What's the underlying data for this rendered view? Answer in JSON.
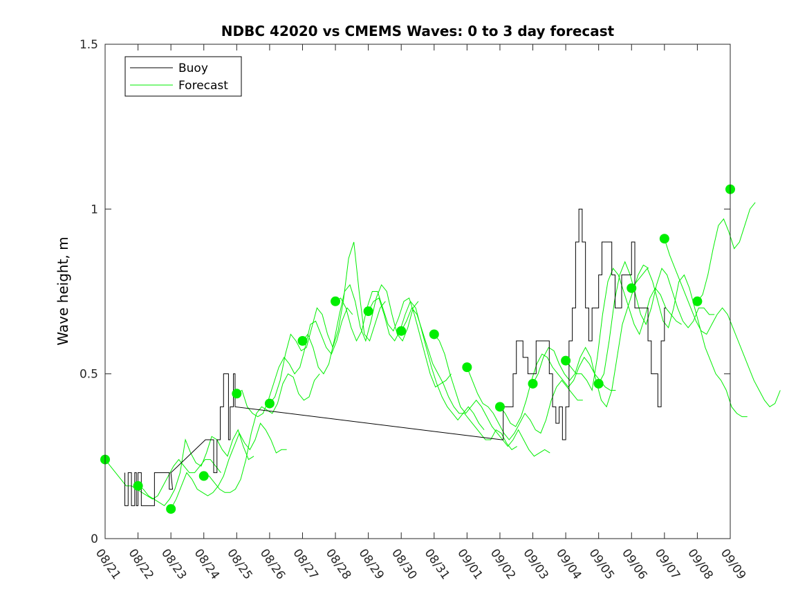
{
  "chart_data": {
    "type": "line",
    "title": "NDBC 42020 vs CMEMS Waves: 0 to 3 day forecast",
    "xlabel": "",
    "ylabel": "Wave height, m",
    "x_unit": "day (month/day)",
    "xlim": [
      "08/21",
      "09/09"
    ],
    "ylim": [
      0,
      1.5
    ],
    "x_ticks": [
      "08/21",
      "08/22",
      "08/23",
      "08/24",
      "08/25",
      "08/26",
      "08/27",
      "08/28",
      "08/29",
      "08/30",
      "08/31",
      "09/01",
      "09/02",
      "09/03",
      "09/04",
      "09/05",
      "09/06",
      "09/07",
      "09/08",
      "09/09"
    ],
    "y_ticks": [
      0,
      0.5,
      1,
      1.5
    ],
    "y_tick_labels": [
      "0",
      "0.5",
      "1",
      "1.5"
    ],
    "grid": false,
    "legend_position": "top-left",
    "legend": [
      "Buoy",
      "Forecast"
    ],
    "colors": {
      "buoy": "#000000",
      "forecast": "#00ee00",
      "markers": "#00ee00"
    },
    "buoy": {
      "name": "Buoy",
      "points": [
        [
          0.6,
          0.2
        ],
        [
          0.6,
          0.1
        ],
        [
          0.7,
          0.1
        ],
        [
          0.7,
          0.2
        ],
        [
          0.8,
          0.2
        ],
        [
          0.8,
          0.1
        ],
        [
          0.9,
          0.1
        ],
        [
          0.9,
          0.2
        ],
        [
          0.95,
          0.2
        ],
        [
          0.95,
          0.1
        ],
        [
          1.0,
          0.1
        ],
        [
          1.0,
          0.2
        ],
        [
          1.1,
          0.2
        ],
        [
          1.1,
          0.1
        ],
        [
          1.5,
          0.1
        ],
        [
          1.5,
          0.2
        ],
        [
          1.95,
          0.2
        ],
        [
          1.95,
          0.15
        ],
        [
          2.05,
          0.15
        ],
        [
          2.0,
          0.2
        ],
        [
          3.05,
          0.3
        ],
        [
          3.3,
          0.3
        ],
        [
          3.3,
          0.2
        ],
        [
          3.4,
          0.2
        ],
        [
          3.4,
          0.3
        ],
        [
          3.5,
          0.3
        ],
        [
          3.5,
          0.4
        ],
        [
          3.6,
          0.4
        ],
        [
          3.6,
          0.5
        ],
        [
          3.75,
          0.5
        ],
        [
          3.75,
          0.3
        ],
        [
          3.8,
          0.3
        ],
        [
          3.8,
          0.4
        ],
        [
          3.9,
          0.4
        ],
        [
          3.9,
          0.5
        ],
        [
          3.95,
          0.5
        ],
        [
          3.95,
          0.4
        ],
        [
          12.05,
          0.3
        ],
        [
          12.1,
          0.3
        ],
        [
          12.1,
          0.4
        ],
        [
          12.4,
          0.4
        ],
        [
          12.4,
          0.5
        ],
        [
          12.5,
          0.5
        ],
        [
          12.5,
          0.6
        ],
        [
          12.7,
          0.6
        ],
        [
          12.7,
          0.55
        ],
        [
          12.85,
          0.55
        ],
        [
          12.85,
          0.5
        ],
        [
          13.1,
          0.5
        ],
        [
          13.1,
          0.6
        ],
        [
          13.5,
          0.6
        ],
        [
          13.5,
          0.5
        ],
        [
          13.6,
          0.5
        ],
        [
          13.6,
          0.4
        ],
        [
          13.7,
          0.4
        ],
        [
          13.7,
          0.35
        ],
        [
          13.8,
          0.35
        ],
        [
          13.8,
          0.4
        ],
        [
          13.9,
          0.4
        ],
        [
          13.9,
          0.3
        ],
        [
          14.0,
          0.3
        ],
        [
          14.0,
          0.4
        ],
        [
          14.1,
          0.4
        ],
        [
          14.1,
          0.6
        ],
        [
          14.2,
          0.6
        ],
        [
          14.2,
          0.7
        ],
        [
          14.3,
          0.7
        ],
        [
          14.3,
          0.9
        ],
        [
          14.4,
          0.9
        ],
        [
          14.4,
          1.0
        ],
        [
          14.5,
          1.0
        ],
        [
          14.5,
          0.9
        ],
        [
          14.6,
          0.9
        ],
        [
          14.6,
          0.7
        ],
        [
          14.7,
          0.7
        ],
        [
          14.7,
          0.6
        ],
        [
          14.8,
          0.6
        ],
        [
          14.8,
          0.7
        ],
        [
          15.0,
          0.7
        ],
        [
          15.0,
          0.8
        ],
        [
          15.1,
          0.8
        ],
        [
          15.1,
          0.9
        ],
        [
          15.4,
          0.9
        ],
        [
          15.4,
          0.8
        ],
        [
          15.5,
          0.8
        ],
        [
          15.5,
          0.7
        ],
        [
          15.7,
          0.7
        ],
        [
          15.7,
          0.8
        ],
        [
          16.0,
          0.8
        ],
        [
          16.0,
          0.9
        ],
        [
          16.1,
          0.9
        ],
        [
          16.1,
          0.7
        ],
        [
          16.5,
          0.7
        ],
        [
          16.5,
          0.6
        ],
        [
          16.6,
          0.6
        ],
        [
          16.6,
          0.5
        ],
        [
          16.8,
          0.5
        ],
        [
          16.8,
          0.4
        ],
        [
          16.9,
          0.4
        ],
        [
          16.9,
          0.6
        ],
        [
          17.0,
          0.6
        ],
        [
          17.0,
          0.7
        ],
        [
          17.05,
          0.7
        ]
      ]
    },
    "forecast_runs": [
      {
        "x0": 0.0,
        "values": [
          0.24,
          0.22,
          0.2,
          0.18,
          0.16,
          0.16,
          0.15,
          0.14,
          0.13,
          0.12,
          0.13,
          0.16,
          0.19,
          0.22,
          0.24,
          0.22,
          0.2,
          0.2,
          0.22,
          0.24,
          0.24,
          0.22,
          0.2
        ]
      },
      {
        "x0": 1.0,
        "values": [
          0.16,
          0.15,
          0.13,
          0.12,
          0.11,
          0.1,
          0.12,
          0.15,
          0.2,
          0.3,
          0.26,
          0.23,
          0.22,
          0.26,
          0.31,
          0.3,
          0.27,
          0.25,
          0.3,
          0.33,
          0.28,
          0.24,
          0.25
        ]
      },
      {
        "x0": 2.0,
        "values": [
          0.09,
          0.12,
          0.16,
          0.2,
          0.18,
          0.15,
          0.14,
          0.13,
          0.14,
          0.16,
          0.19,
          0.24,
          0.28,
          0.32,
          0.29,
          0.27,
          0.3,
          0.35,
          0.33,
          0.3,
          0.26,
          0.27,
          0.27
        ]
      },
      {
        "x0": 3.0,
        "values": [
          0.19,
          0.19,
          0.17,
          0.15,
          0.14,
          0.14,
          0.15,
          0.18,
          0.24,
          0.32,
          0.38,
          0.4,
          0.39,
          0.38,
          0.41,
          0.47,
          0.5,
          0.49,
          0.44,
          0.42,
          0.43,
          0.48,
          0.5
        ]
      },
      {
        "x0": 4.0,
        "values": [
          0.44,
          0.45,
          0.4,
          0.38,
          0.37,
          0.38,
          0.42,
          0.47,
          0.52,
          0.55,
          0.53,
          0.5,
          0.52,
          0.58,
          0.65,
          0.66,
          0.62,
          0.58,
          0.56,
          0.6,
          0.66,
          0.7,
          0.68
        ]
      },
      {
        "x0": 5.0,
        "values": [
          0.41,
          0.43,
          0.48,
          0.56,
          0.62,
          0.6,
          0.57,
          0.58,
          0.64,
          0.7,
          0.68,
          0.62,
          0.58,
          0.63,
          0.72,
          0.85,
          0.9,
          0.75,
          0.62,
          0.6,
          0.65,
          0.7,
          0.72
        ]
      },
      {
        "x0": 6.0,
        "values": [
          0.6,
          0.62,
          0.58,
          0.52,
          0.5,
          0.53,
          0.6,
          0.68,
          0.75,
          0.77,
          0.72,
          0.64,
          0.6,
          0.66,
          0.73,
          0.77,
          0.75,
          0.68,
          0.62,
          0.6,
          0.64,
          0.7,
          0.72
        ]
      },
      {
        "x0": 7.0,
        "values": [
          0.72,
          0.73,
          0.7,
          0.64,
          0.6,
          0.63,
          0.7,
          0.75,
          0.75,
          0.7,
          0.65,
          0.63,
          0.67,
          0.72,
          0.73,
          0.68,
          0.62,
          0.56,
          0.5,
          0.46,
          0.47,
          0.48,
          0.5
        ]
      },
      {
        "x0": 8.0,
        "values": [
          0.69,
          0.72,
          0.73,
          0.68,
          0.62,
          0.6,
          0.63,
          0.68,
          0.72,
          0.7,
          0.64,
          0.58,
          0.52,
          0.47,
          0.43,
          0.4,
          0.38,
          0.36,
          0.38,
          0.4,
          0.38,
          0.35,
          0.33
        ]
      },
      {
        "x0": 9.0,
        "values": [
          0.63,
          0.66,
          0.7,
          0.68,
          0.63,
          0.58,
          0.53,
          0.5,
          0.47,
          0.43,
          0.4,
          0.38,
          0.38,
          0.36,
          0.34,
          0.32,
          0.3,
          0.3,
          0.33,
          0.32,
          0.29,
          0.27,
          0.28
        ]
      },
      {
        "x0": 10.0,
        "values": [
          0.62,
          0.6,
          0.56,
          0.5,
          0.45,
          0.4,
          0.38,
          0.4,
          0.42,
          0.4,
          0.37,
          0.34,
          0.32,
          0.3,
          0.28,
          0.3,
          0.33,
          0.3,
          0.27,
          0.25,
          0.26,
          0.27,
          0.26
        ]
      },
      {
        "x0": 11.0,
        "values": [
          0.52,
          0.48,
          0.44,
          0.41,
          0.4,
          0.38,
          0.35,
          0.32,
          0.3,
          0.32,
          0.35,
          0.38,
          0.36,
          0.33,
          0.32,
          0.36,
          0.42,
          0.46,
          0.48,
          0.46,
          0.44,
          0.42,
          0.42
        ]
      },
      {
        "x0": 12.0,
        "values": [
          0.4,
          0.38,
          0.35,
          0.34,
          0.37,
          0.42,
          0.48,
          0.53,
          0.56,
          0.55,
          0.52,
          0.5,
          0.48,
          0.46,
          0.48,
          0.52,
          0.55,
          0.53,
          0.5,
          0.48,
          0.46,
          0.45,
          0.45
        ]
      },
      {
        "x0": 13.0,
        "values": [
          0.47,
          0.5,
          0.55,
          0.58,
          0.57,
          0.53,
          0.5,
          0.48,
          0.5,
          0.55,
          0.58,
          0.55,
          0.48,
          0.42,
          0.4,
          0.45,
          0.55,
          0.65,
          0.7,
          0.75,
          0.8,
          0.83,
          0.82
        ]
      },
      {
        "x0": 14.0,
        "values": [
          0.54,
          0.52,
          0.5,
          0.5,
          0.48,
          0.45,
          0.55,
          0.68,
          0.78,
          0.82,
          0.8,
          0.75,
          0.7,
          0.65,
          0.62,
          0.67,
          0.73,
          0.76,
          0.74,
          0.7,
          0.68,
          0.66,
          0.65
        ]
      },
      {
        "x0": 15.0,
        "values": [
          0.47,
          0.5,
          0.6,
          0.72,
          0.8,
          0.84,
          0.8,
          0.74,
          0.68,
          0.65,
          0.7,
          0.77,
          0.82,
          0.8,
          0.75,
          0.7,
          0.66,
          0.64,
          0.66,
          0.7,
          0.7,
          0.68,
          0.68
        ]
      },
      {
        "x0": 16.0,
        "values": [
          0.76,
          0.78,
          0.8,
          0.82,
          0.78,
          0.72,
          0.66,
          0.64,
          0.7,
          0.78,
          0.8,
          0.76,
          0.7,
          0.64,
          0.58,
          0.54,
          0.5,
          0.48,
          0.45,
          0.4,
          0.38,
          0.37,
          0.37
        ]
      },
      {
        "x0": 17.0,
        "values": [
          0.91,
          0.86,
          0.82,
          0.78,
          0.74,
          0.7,
          0.66,
          0.63,
          0.62,
          0.65,
          0.68,
          0.7,
          0.68,
          0.64,
          0.6,
          0.56,
          0.52,
          0.48,
          0.45,
          0.42,
          0.4,
          0.41,
          0.45
        ]
      },
      {
        "x0": 18.0,
        "values": [
          0.72,
          0.74,
          0.8,
          0.88,
          0.95,
          0.97,
          0.93,
          0.88,
          0.9,
          0.95,
          1.0,
          1.02
        ]
      }
    ],
    "daily_markers": {
      "x": [
        0,
        1,
        2,
        3,
        4,
        5,
        6,
        7,
        8,
        9,
        10,
        11,
        12,
        13,
        14,
        15,
        16,
        17,
        18,
        19
      ],
      "y": [
        0.24,
        0.16,
        0.09,
        0.19,
        0.44,
        0.41,
        0.6,
        0.72,
        0.69,
        0.63,
        0.62,
        0.52,
        0.4,
        0.47,
        0.54,
        0.47,
        0.76,
        0.91,
        0.72,
        1.06
      ]
    }
  }
}
